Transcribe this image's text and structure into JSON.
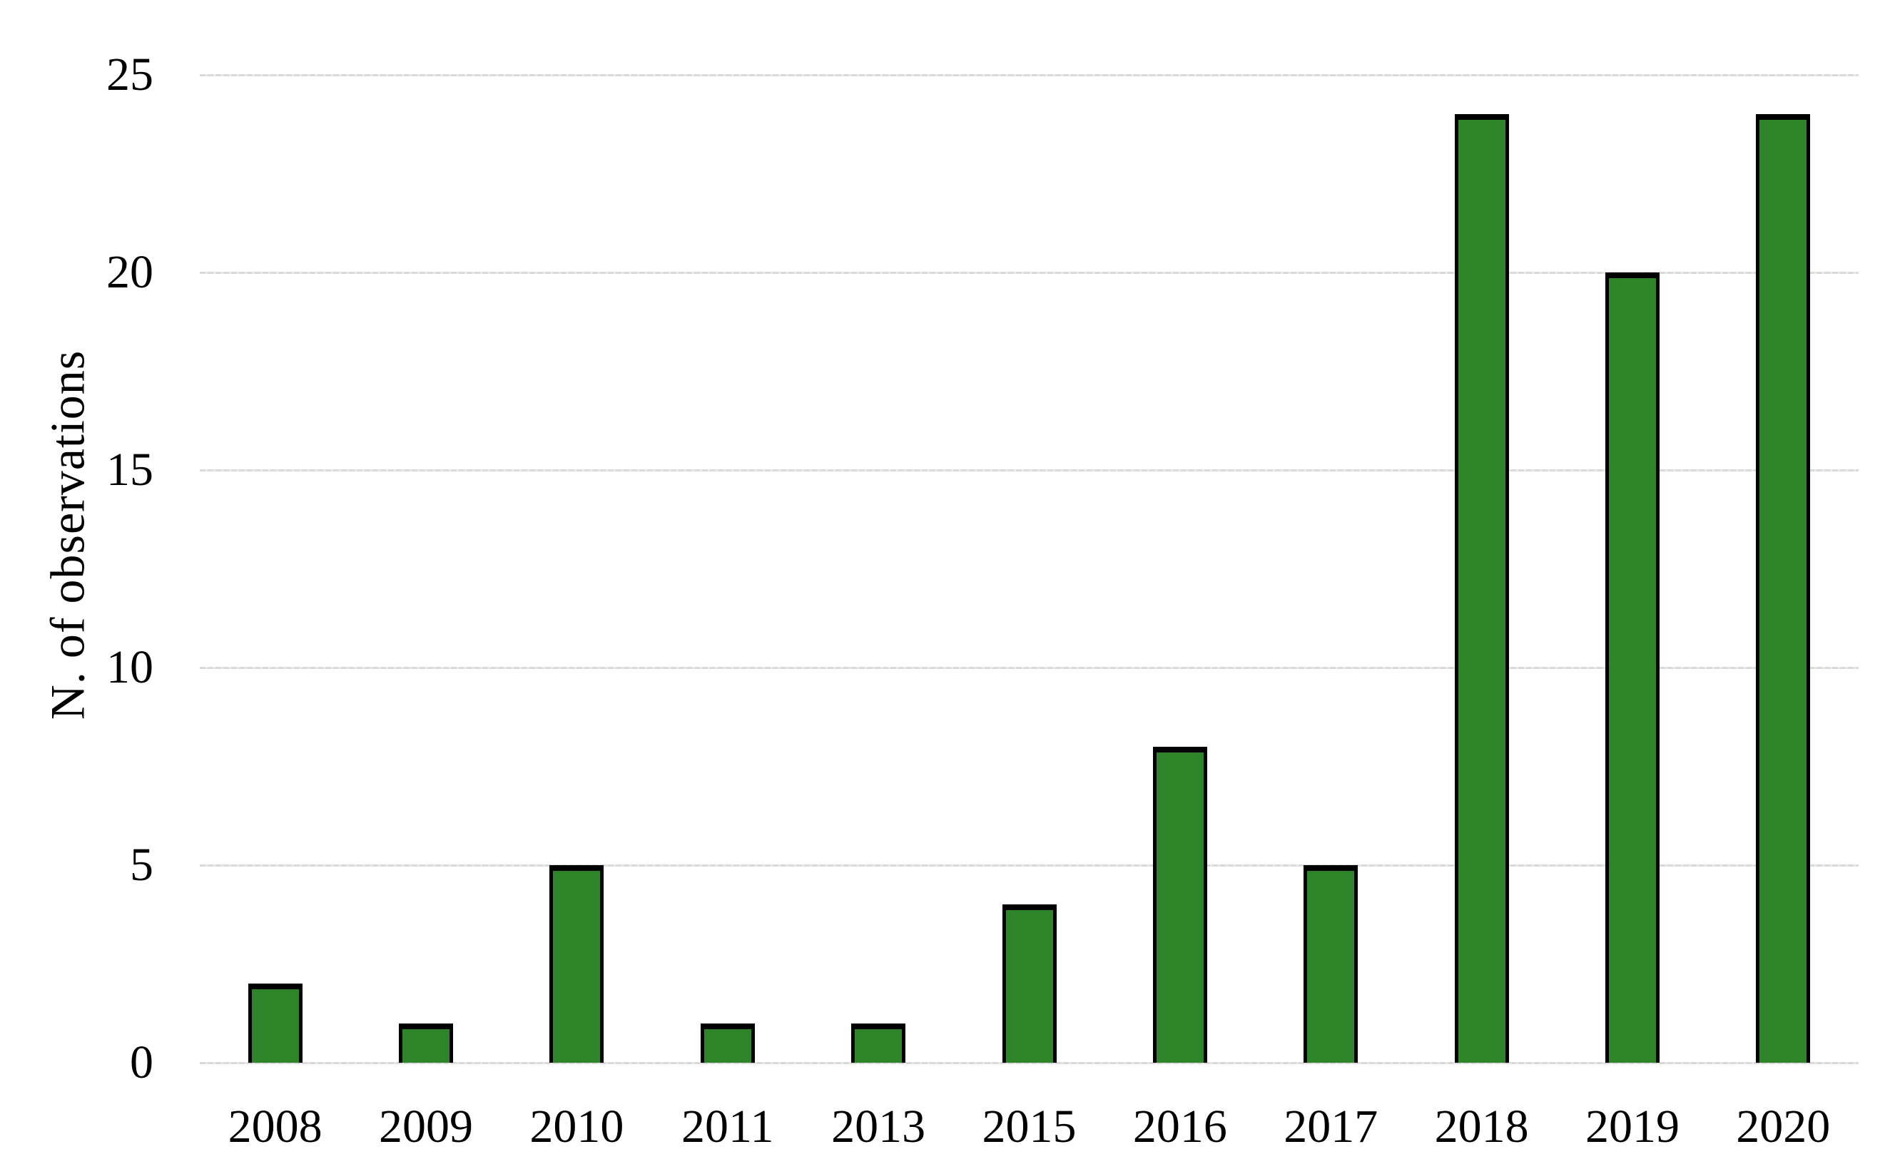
{
  "chart_data": {
    "type": "bar",
    "title": "",
    "xlabel": "",
    "ylabel": "N. of observations",
    "categories": [
      "2008",
      "2009",
      "2010",
      "2011",
      "2013",
      "2015",
      "2016",
      "2017",
      "2018",
      "2019",
      "2020"
    ],
    "values": [
      2,
      1,
      5,
      1,
      1,
      4,
      8,
      5,
      24,
      20,
      24
    ],
    "y_ticks": [
      0,
      5,
      10,
      15,
      20,
      25
    ],
    "ylim": [
      0,
      25
    ],
    "grid": "horizontal-dotted",
    "legend": "none",
    "colors": {
      "bar_fill": "#2e8428",
      "bar_border": "#000000",
      "gridline": "#d9d9d9",
      "text": "#000000",
      "background": "#ffffff"
    }
  }
}
